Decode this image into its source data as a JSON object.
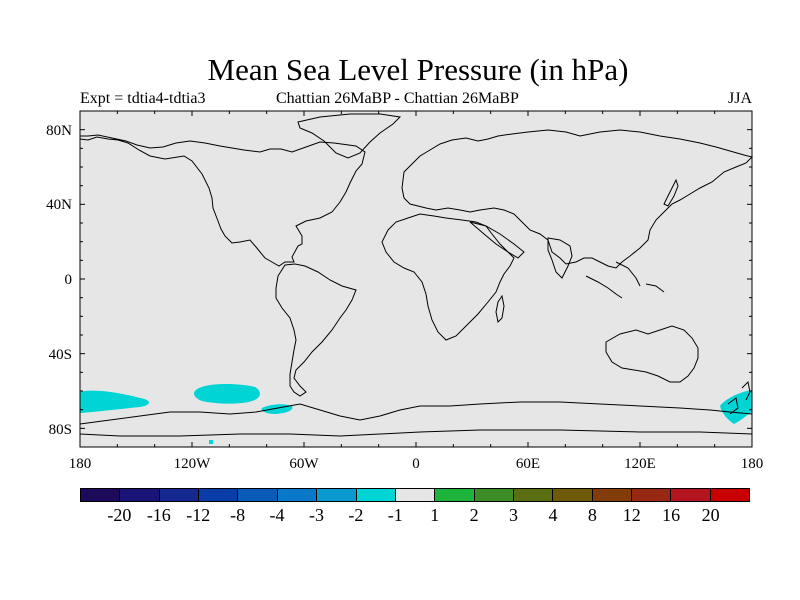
{
  "title": "Mean Sea Level Pressure (in hPa)",
  "subtitle_left": "Expt = tdtia4-tdtia3",
  "subtitle_center": "Chattian  26MaBP - Chattian  26MaBP",
  "subtitle_right": "JJA",
  "map": {
    "projection": "cylindrical-equidistant",
    "lon_range": [
      -180,
      180
    ],
    "lat_range": [
      -90,
      90
    ],
    "background_color": "#e6e6e6",
    "coast_color": "#000000",
    "y_axis_labels": [
      "80N",
      "40N",
      "0",
      "40S",
      "80S"
    ],
    "x_axis_labels": [
      "180",
      "120W",
      "60W",
      "0",
      "60E",
      "120E",
      "180"
    ],
    "anomaly_regions": [
      {
        "name": "south-pacific-west-patch",
        "level": "-2 to -1",
        "color": "#00d4d4"
      },
      {
        "name": "south-pacific-central-patch",
        "level": "-2 to -1",
        "color": "#00d4d4"
      },
      {
        "name": "drake-passage-patch",
        "level": "-2 to -1",
        "color": "#00d4d4"
      },
      {
        "name": "ross-sea-patch",
        "level": "-2 to -1",
        "color": "#00d4d4"
      }
    ]
  },
  "colorbar": {
    "colors": [
      "#1e0a5a",
      "#1a1478",
      "#142890",
      "#0a3ca8",
      "#0a5ab8",
      "#0a78c8",
      "#0a9ad0",
      "#00d4d4",
      "#e6e6e6",
      "#1eb43c",
      "#3c8c28",
      "#5a6e14",
      "#6e5a0a",
      "#823c0a",
      "#962814",
      "#b4141e",
      "#c80000"
    ],
    "labels": [
      "-20",
      "-16",
      "-12",
      "-8",
      "-4",
      "-3",
      "-2",
      "-1",
      "1",
      "2",
      "3",
      "4",
      "8",
      "12",
      "16",
      "20"
    ]
  }
}
